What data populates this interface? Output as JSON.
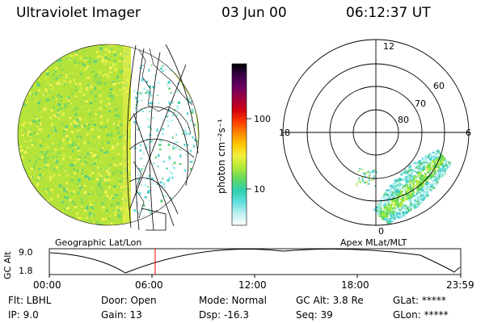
{
  "header": {
    "instrument": "Ultraviolet Imager",
    "date": "03 Jun 00",
    "time": "06:12:37 UT"
  },
  "colorbar": {
    "unit_label": "photon cm⁻²s⁻¹",
    "ticks": [
      "100",
      "10"
    ],
    "colors": [
      "#000000",
      "#3a0048",
      "#6a0060",
      "#a00040",
      "#d00010",
      "#ff3a00",
      "#ff8800",
      "#ffc800",
      "#f0f040",
      "#b0ea38",
      "#60d860",
      "#30d0b0",
      "#60e0e0",
      "#bfeff0",
      "#ffffff"
    ]
  },
  "left_panel": {
    "caption": "Geographic Lat/Lon"
  },
  "right_panel": {
    "caption": "Apex MLat/MLT",
    "mlt_labels": {
      "top": "12",
      "left": "18",
      "right": "6",
      "bottom": "0"
    },
    "lat_labels": [
      "60",
      "70",
      "80"
    ]
  },
  "altitude_plot": {
    "ylabel": "GC Alt",
    "ytick_top": "9.0",
    "ytick_bottom": "1.8",
    "time_ticks": [
      "00:00",
      "06:00",
      "12:00",
      "18:00",
      "23:59"
    ],
    "marker_color": "#ff0000"
  },
  "footer": {
    "flt": "Flt: LBHL",
    "ip": "IP:  9.0",
    "door": "Door: Open",
    "gain": "Gain: 13",
    "mode": "Mode: Normal",
    "dsp": "Dsp:  -16.3",
    "gcalt": "GC Alt: 3.8 Re",
    "seq": "Seq: 39",
    "glat": "GLat: *****",
    "glon": "GLon: *****"
  }
}
